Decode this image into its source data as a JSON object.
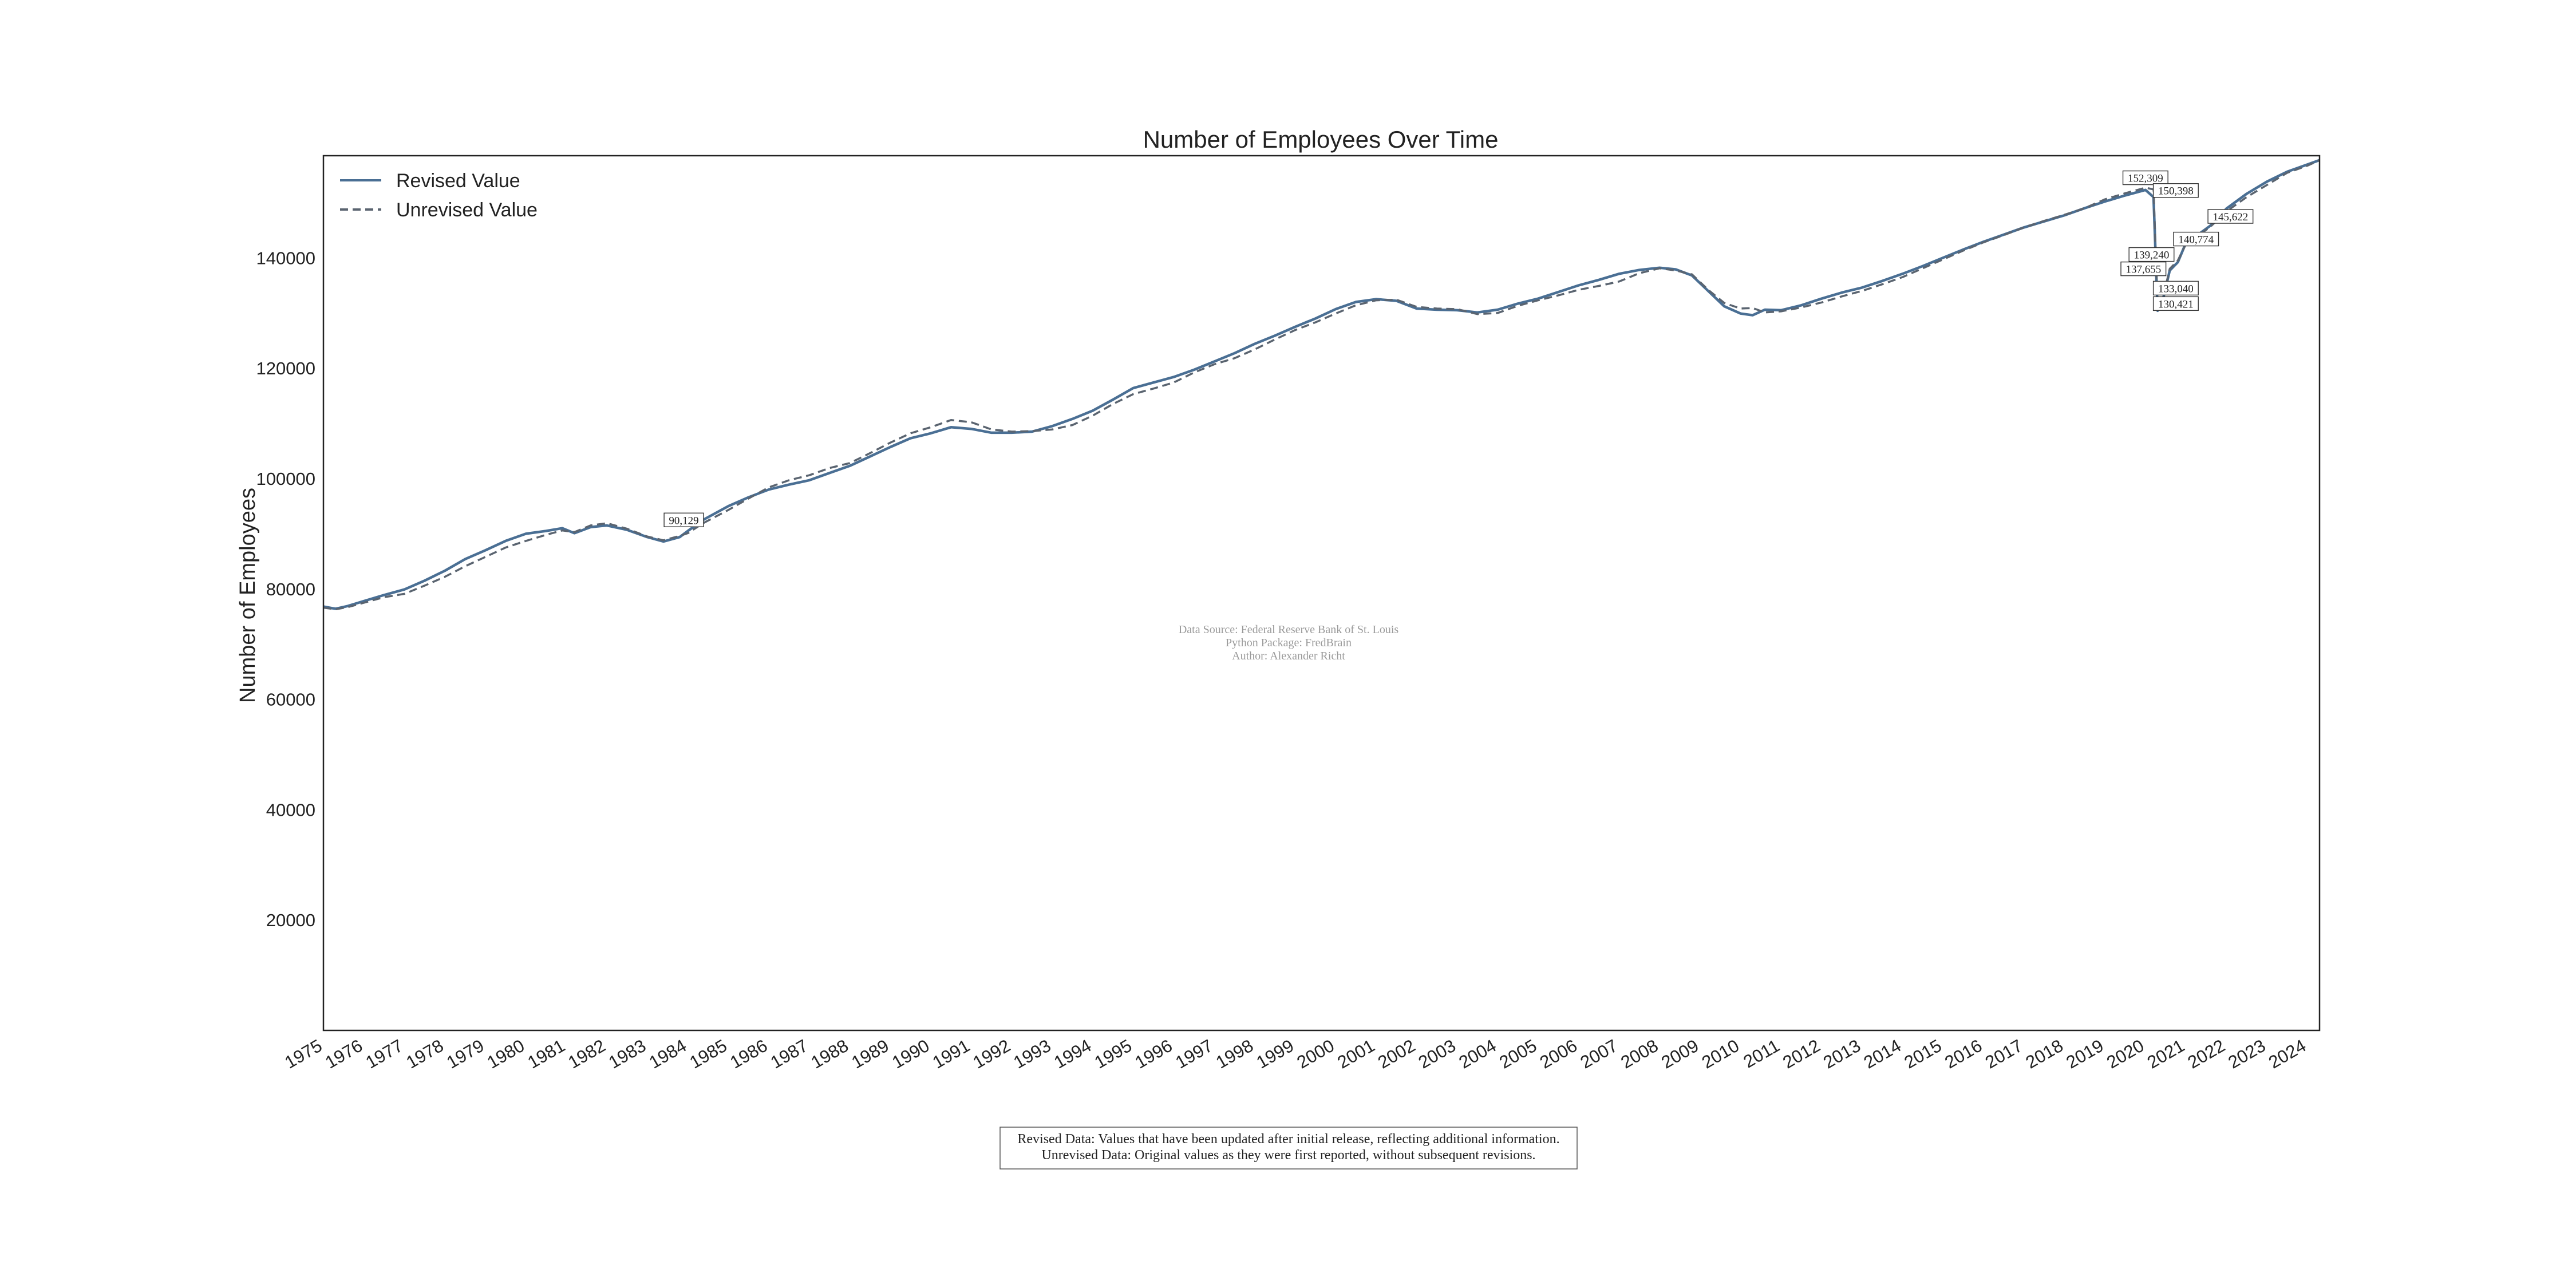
{
  "chart_data": {
    "type": "line",
    "title": "Number of Employees Over Time",
    "xlabel": "",
    "ylabel": "Number of Employees",
    "xlim": [
      1975.0,
      2024.3
    ],
    "ylim": [
      0,
      158500
    ],
    "yticks": [
      20000,
      40000,
      60000,
      80000,
      100000,
      120000,
      140000
    ],
    "xticks": [
      "1975",
      "1976",
      "1977",
      "1978",
      "1979",
      "1980",
      "1981",
      "1982",
      "1983",
      "1984",
      "1985",
      "1986",
      "1987",
      "1988",
      "1989",
      "1990",
      "1991",
      "1992",
      "1993",
      "1994",
      "1995",
      "1996",
      "1997",
      "1998",
      "1999",
      "2000",
      "2001",
      "2002",
      "2003",
      "2004",
      "2005",
      "2006",
      "2007",
      "2008",
      "2009",
      "2010",
      "2011",
      "2012",
      "2013",
      "2014",
      "2015",
      "2016",
      "2017",
      "2018",
      "2019",
      "2020",
      "2021",
      "2022",
      "2023",
      "2024"
    ],
    "grid": false,
    "legend_position": "top-left",
    "colors": {
      "revised": "#4a6f94",
      "unrevised": "#5a6470"
    },
    "series": [
      {
        "name": "Revised Value",
        "style": "solid",
        "points": [
          [
            1975.0,
            76800
          ],
          [
            1975.3,
            76400
          ],
          [
            1975.6,
            76900
          ],
          [
            1976.0,
            77800
          ],
          [
            1976.5,
            78900
          ],
          [
            1977.0,
            79900
          ],
          [
            1977.5,
            81500
          ],
          [
            1978.0,
            83300
          ],
          [
            1978.5,
            85400
          ],
          [
            1979.0,
            87000
          ],
          [
            1979.5,
            88700
          ],
          [
            1980.0,
            90000
          ],
          [
            1980.5,
            90500
          ],
          [
            1980.9,
            91000
          ],
          [
            1981.2,
            90100
          ],
          [
            1981.6,
            91200
          ],
          [
            1982.0,
            91500
          ],
          [
            1982.5,
            90700
          ],
          [
            1983.0,
            89400
          ],
          [
            1983.4,
            88600
          ],
          [
            1983.8,
            89400
          ],
          [
            1984.0,
            90500
          ],
          [
            1984.4,
            92600
          ],
          [
            1985.0,
            95000
          ],
          [
            1985.5,
            96600
          ],
          [
            1986.0,
            98000
          ],
          [
            1986.5,
            98900
          ],
          [
            1987.0,
            99700
          ],
          [
            1987.5,
            101000
          ],
          [
            1988.0,
            102300
          ],
          [
            1988.5,
            104000
          ],
          [
            1989.0,
            105700
          ],
          [
            1989.5,
            107300
          ],
          [
            1990.0,
            108200
          ],
          [
            1990.5,
            109300
          ],
          [
            1991.0,
            109000
          ],
          [
            1991.5,
            108300
          ],
          [
            1992.0,
            108300
          ],
          [
            1992.5,
            108500
          ],
          [
            1993.0,
            109500
          ],
          [
            1993.5,
            110800
          ],
          [
            1994.0,
            112300
          ],
          [
            1994.5,
            114300
          ],
          [
            1995.0,
            116400
          ],
          [
            1995.5,
            117400
          ],
          [
            1996.0,
            118400
          ],
          [
            1996.5,
            119700
          ],
          [
            1997.0,
            121200
          ],
          [
            1997.5,
            122700
          ],
          [
            1998.0,
            124400
          ],
          [
            1998.5,
            125900
          ],
          [
            1999.0,
            127500
          ],
          [
            1999.5,
            129000
          ],
          [
            2000.0,
            130700
          ],
          [
            2000.5,
            132000
          ],
          [
            2001.0,
            132500
          ],
          [
            2001.5,
            132200
          ],
          [
            2002.0,
            130800
          ],
          [
            2002.5,
            130600
          ],
          [
            2003.0,
            130500
          ],
          [
            2003.5,
            130100
          ],
          [
            2004.0,
            130600
          ],
          [
            2004.5,
            131700
          ],
          [
            2005.0,
            132600
          ],
          [
            2005.5,
            133800
          ],
          [
            2006.0,
            135000
          ],
          [
            2006.5,
            136000
          ],
          [
            2007.0,
            137100
          ],
          [
            2007.5,
            137800
          ],
          [
            2008.0,
            138200
          ],
          [
            2008.4,
            137900
          ],
          [
            2008.8,
            136800
          ],
          [
            2009.2,
            134000
          ],
          [
            2009.6,
            131200
          ],
          [
            2010.0,
            129900
          ],
          [
            2010.3,
            129600
          ],
          [
            2010.6,
            130600
          ],
          [
            2011.0,
            130500
          ],
          [
            2011.5,
            131400
          ],
          [
            2012.0,
            132600
          ],
          [
            2012.5,
            133700
          ],
          [
            2013.0,
            134600
          ],
          [
            2013.5,
            135800
          ],
          [
            2014.0,
            137100
          ],
          [
            2014.5,
            138500
          ],
          [
            2015.0,
            140000
          ],
          [
            2015.5,
            141500
          ],
          [
            2016.0,
            142900
          ],
          [
            2016.5,
            144200
          ],
          [
            2017.0,
            145500
          ],
          [
            2017.5,
            146600
          ],
          [
            2018.0,
            147700
          ],
          [
            2018.5,
            149000
          ],
          [
            2019.0,
            150200
          ],
          [
            2019.5,
            151300
          ],
          [
            2020.0,
            152300
          ],
          [
            2020.2,
            151000
          ],
          [
            2020.3,
            130400
          ],
          [
            2020.45,
            133000
          ],
          [
            2020.6,
            137700
          ],
          [
            2020.8,
            139200
          ],
          [
            2021.0,
            142700
          ],
          [
            2021.3,
            144200
          ],
          [
            2021.6,
            145800
          ],
          [
            2022.0,
            148900
          ],
          [
            2022.5,
            151600
          ],
          [
            2023.0,
            153800
          ],
          [
            2023.5,
            155600
          ],
          [
            2024.0,
            156900
          ],
          [
            2024.3,
            157700
          ]
        ]
      },
      {
        "name": "Unrevised Value",
        "style": "dashed",
        "points": [
          [
            1975.0,
            76600
          ],
          [
            1975.3,
            76300
          ],
          [
            1975.6,
            76700
          ],
          [
            1976.0,
            77500
          ],
          [
            1976.5,
            78500
          ],
          [
            1977.0,
            79100
          ],
          [
            1977.5,
            80600
          ],
          [
            1978.0,
            82200
          ],
          [
            1978.5,
            84100
          ],
          [
            1979.0,
            85800
          ],
          [
            1979.5,
            87500
          ],
          [
            1980.0,
            88700
          ],
          [
            1980.5,
            89800
          ],
          [
            1980.9,
            90600
          ],
          [
            1981.2,
            90300
          ],
          [
            1981.6,
            91500
          ],
          [
            1982.0,
            91900
          ],
          [
            1982.5,
            90900
          ],
          [
            1983.0,
            89500
          ],
          [
            1983.4,
            88800
          ],
          [
            1983.8,
            89600
          ],
          [
            1984.0,
            90100
          ],
          [
            1984.4,
            92000
          ],
          [
            1985.0,
            94300
          ],
          [
            1985.5,
            96400
          ],
          [
            1986.0,
            98400
          ],
          [
            1986.5,
            99700
          ],
          [
            1987.0,
            100600
          ],
          [
            1987.5,
            101900
          ],
          [
            1988.0,
            102800
          ],
          [
            1988.5,
            104600
          ],
          [
            1989.0,
            106500
          ],
          [
            1989.5,
            108200
          ],
          [
            1990.0,
            109300
          ],
          [
            1990.5,
            110600
          ],
          [
            1991.0,
            110200
          ],
          [
            1991.5,
            108900
          ],
          [
            1992.0,
            108500
          ],
          [
            1992.5,
            108600
          ],
          [
            1993.0,
            108900
          ],
          [
            1993.5,
            109700
          ],
          [
            1994.0,
            111400
          ],
          [
            1994.5,
            113500
          ],
          [
            1995.0,
            115300
          ],
          [
            1995.5,
            116300
          ],
          [
            1996.0,
            117400
          ],
          [
            1996.5,
            119200
          ],
          [
            1997.0,
            120700
          ],
          [
            1997.5,
            121800
          ],
          [
            1998.0,
            123400
          ],
          [
            1998.5,
            125200
          ],
          [
            1999.0,
            126900
          ],
          [
            1999.5,
            128300
          ],
          [
            2000.0,
            129900
          ],
          [
            2000.5,
            131400
          ],
          [
            2001.0,
            132300
          ],
          [
            2001.5,
            132400
          ],
          [
            2002.0,
            131100
          ],
          [
            2002.5,
            130800
          ],
          [
            2003.0,
            130700
          ],
          [
            2003.5,
            129800
          ],
          [
            2004.0,
            130000
          ],
          [
            2004.5,
            131300
          ],
          [
            2005.0,
            132300
          ],
          [
            2005.5,
            133200
          ],
          [
            2006.0,
            134200
          ],
          [
            2006.5,
            134900
          ],
          [
            2007.0,
            135700
          ],
          [
            2007.5,
            137200
          ],
          [
            2008.0,
            138100
          ],
          [
            2008.4,
            137700
          ],
          [
            2008.8,
            137000
          ],
          [
            2009.2,
            134200
          ],
          [
            2009.6,
            131800
          ],
          [
            2010.0,
            130800
          ],
          [
            2010.3,
            130900
          ],
          [
            2010.6,
            130100
          ],
          [
            2011.0,
            130300
          ],
          [
            2011.5,
            131000
          ],
          [
            2012.0,
            131900
          ],
          [
            2012.5,
            133000
          ],
          [
            2013.0,
            134000
          ],
          [
            2013.5,
            135200
          ],
          [
            2014.0,
            136500
          ],
          [
            2014.5,
            138100
          ],
          [
            2015.0,
            139700
          ],
          [
            2015.5,
            141300
          ],
          [
            2016.0,
            142800
          ],
          [
            2016.5,
            144100
          ],
          [
            2017.0,
            145500
          ],
          [
            2017.5,
            146700
          ],
          [
            2018.0,
            147800
          ],
          [
            2018.5,
            149000
          ],
          [
            2019.0,
            150600
          ],
          [
            2019.5,
            151700
          ],
          [
            2020.0,
            152700
          ],
          [
            2020.2,
            152400
          ],
          [
            2020.3,
            130900
          ],
          [
            2020.45,
            133300
          ],
          [
            2020.6,
            138000
          ],
          [
            2020.8,
            139500
          ],
          [
            2021.0,
            142500
          ],
          [
            2021.3,
            144000
          ],
          [
            2021.6,
            145600
          ],
          [
            2022.0,
            148400
          ],
          [
            2022.5,
            151000
          ],
          [
            2023.0,
            153200
          ],
          [
            2023.5,
            155400
          ],
          [
            2024.0,
            156700
          ],
          [
            2024.3,
            157700
          ]
        ]
      }
    ],
    "annotations": [
      {
        "label": "90,129",
        "x": 1983.9,
        "y": 92500
      },
      {
        "label": "152,309",
        "x": 2020.0,
        "y": 154500
      },
      {
        "label": "150,398",
        "x": 2020.75,
        "y": 152200
      },
      {
        "label": "145,622",
        "x": 2022.1,
        "y": 147500
      },
      {
        "label": "140,774",
        "x": 2021.25,
        "y": 143400
      },
      {
        "label": "139,240",
        "x": 2020.15,
        "y": 140600
      },
      {
        "label": "137,655",
        "x": 2019.95,
        "y": 138000
      },
      {
        "label": "133,040",
        "x": 2020.75,
        "y": 134500
      },
      {
        "label": "130,421",
        "x": 2020.75,
        "y": 131700
      }
    ],
    "source_lines": [
      "Data Source: Federal Reserve Bank of St. Louis",
      "Python Package: FredBrain",
      "Author: Alexander Richt"
    ],
    "note_lines": [
      "Revised Data: Values that have been updated after initial release, reflecting additional information.",
      "Unrevised Data: Original values as they were first reported, without subsequent revisions."
    ]
  }
}
